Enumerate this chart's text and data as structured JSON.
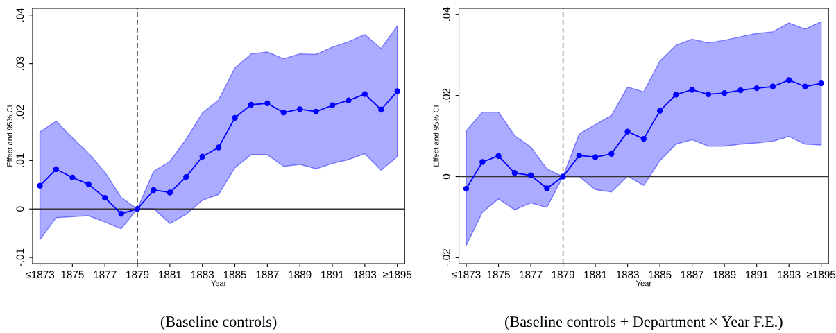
{
  "chart_data": [
    {
      "type": "line",
      "title": "(Baseline controls)",
      "xlabel": "Year",
      "ylabel": "Effect and 95% CI",
      "categories": [
        "≤1873",
        null,
        "1875",
        null,
        "1877",
        null,
        "1879",
        null,
        "1881",
        null,
        "1883",
        null,
        "1885",
        null,
        "1887",
        null,
        "1889",
        null,
        "1891",
        null,
        "1893",
        null,
        "≥1895"
      ],
      "series": [
        {
          "color": "#0000ff",
          "values": [
            0.0048,
            0.0082,
            0.0065,
            0.0051,
            0.0023,
            -0.001,
            0,
            0.0039,
            0.0034,
            0.0066,
            0.0108,
            0.0127,
            0.0188,
            0.0215,
            0.0218,
            0.0199,
            0.0206,
            0.0201,
            0.0214,
            0.0224,
            0.0237,
            0.0205,
            0.0243
          ],
          "upper": [
            0.0159,
            0.0181,
            0.0147,
            0.0115,
            0.0076,
            0.0024,
            0,
            0.0078,
            0.0098,
            0.0144,
            0.0198,
            0.0225,
            0.0291,
            0.032,
            0.0324,
            0.031,
            0.032,
            0.0319,
            0.0334,
            0.0345,
            0.036,
            0.0331,
            0.0378
          ],
          "lower": [
            -0.0063,
            -0.0018,
            -0.0016,
            -0.0014,
            -0.0027,
            -0.0041,
            0,
            0.0001,
            -0.003,
            -0.0011,
            0.0018,
            0.003,
            0.0085,
            0.0112,
            0.0112,
            0.0088,
            0.0092,
            0.0083,
            0.0094,
            0.0102,
            0.0114,
            0.008,
            0.0108
          ]
        }
      ],
      "ylim": [
        -0.0113,
        0.0414
      ],
      "yticks": [
        {
          "value": -0.01,
          "label": "-.01"
        },
        0,
        {
          "value": 0.01,
          "label": ".01"
        },
        {
          "value": 0.02,
          "label": ".02"
        },
        {
          "value": 0.03,
          "label": ".03"
        },
        {
          "value": 0.04,
          "label": ".04"
        }
      ],
      "ref_lines": [
        {
          "axis": "y",
          "value": 0,
          "color": "#333333",
          "line_style": "solid"
        },
        {
          "axis": "x",
          "value": "1879",
          "color": "#333333",
          "line_style": "dashed"
        }
      ],
      "marker": "circle",
      "line_style": "solid",
      "grid": false,
      "legend": false
    },
    {
      "type": "line",
      "title": "(Baseline controls + Department × Year F.E.)",
      "xlabel": "Year",
      "ylabel": "Effect and 95% CI",
      "categories": [
        "≤1873",
        null,
        "1875",
        null,
        "1877",
        null,
        "1879",
        null,
        "1881",
        null,
        "1883",
        null,
        "1885",
        null,
        "1887",
        null,
        "1889",
        null,
        "1891",
        null,
        "1893",
        null,
        "≥1895"
      ],
      "series": [
        {
          "color": "#0000ff",
          "values": [
            -0.003,
            0.0036,
            0.0051,
            0.0009,
            0.0003,
            -0.0029,
            0,
            0.0052,
            0.0048,
            0.0056,
            0.0111,
            0.0093,
            0.0162,
            0.0202,
            0.0214,
            0.0203,
            0.0206,
            0.0213,
            0.0218,
            0.0222,
            0.0238,
            0.0222,
            0.023
          ],
          "upper": [
            0.0113,
            0.0159,
            0.0159,
            0.0101,
            0.0073,
            0.0019,
            0,
            0.0105,
            0.0128,
            0.0151,
            0.0221,
            0.0209,
            0.0285,
            0.0324,
            0.0339,
            0.033,
            0.0336,
            0.0345,
            0.0353,
            0.0357,
            0.0379,
            0.0364,
            0.0382
          ],
          "lower": [
            -0.017,
            -0.0088,
            -0.0055,
            -0.0082,
            -0.0065,
            -0.0076,
            0,
            0,
            -0.0032,
            -0.0038,
            0.0001,
            -0.0022,
            0.0039,
            0.008,
            0.0091,
            0.0075,
            0.0075,
            0.008,
            0.0083,
            0.0087,
            0.0099,
            0.008,
            0.0078
          ]
        }
      ],
      "ylim": [
        -0.0215,
        0.0415
      ],
      "yticks": [
        {
          "value": -0.02,
          "label": "-.02"
        },
        0,
        {
          "value": 0.02,
          "label": ".02"
        },
        {
          "value": 0.04,
          "label": ".04"
        }
      ],
      "ref_lines": [
        {
          "axis": "y",
          "value": 0,
          "color": "#333333",
          "line_style": "solid"
        },
        {
          "axis": "x",
          "value": "1879",
          "color": "#333333",
          "line_style": "dashed"
        }
      ],
      "marker": "circle",
      "line_style": "solid",
      "grid": false,
      "legend": false
    }
  ]
}
